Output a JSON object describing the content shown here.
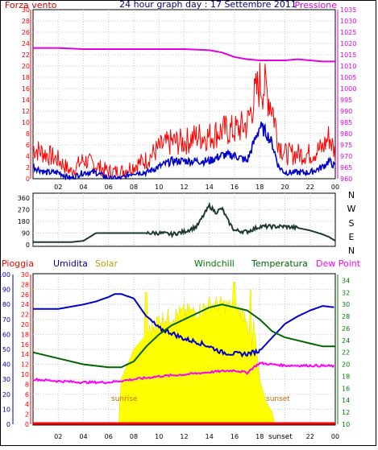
{
  "colors": {
    "wind": "#ff0000",
    "gust_line": "#0000cc",
    "pressure": "#e000e0",
    "wind_dir": "#1f3b2f",
    "humidity": "#0000cc",
    "solar": "#ffff00",
    "windchill": "#007a00",
    "temperature": "#006400",
    "dew_point": "#ff00ff",
    "rain": "#ff0000",
    "label_sun": "#cc6600",
    "axis_green": "#008000",
    "axis_blue": "#0000aa",
    "axis_red": "#ff0000",
    "solar_label": "#b8a000",
    "title_blue": "#000080"
  },
  "header": {
    "wind_label": "Forza vento",
    "title": "24 hour graph day : 17 Settembre 2011",
    "pressure_label": "Pressione"
  },
  "direction_labels": [
    "N",
    "W",
    "S",
    "E",
    "N"
  ],
  "bottom_labels": {
    "rain": "Pioggia",
    "humidity": "Umidita",
    "solar": "Solar",
    "windchill": "Windchill",
    "temperature": "Temperatura",
    "dew_point": "Dew Point",
    "sunrise": "sunrise",
    "sunset": "sunset",
    "sunset_axis": "sunset"
  },
  "x_ticks_top": [
    "02",
    "04",
    "06",
    "08",
    "10",
    "12",
    "14",
    "16",
    "18",
    "20",
    "22",
    "00"
  ],
  "x_ticks_bottom": [
    "02",
    "04",
    "06",
    "08",
    "10",
    "12",
    "14",
    "16",
    "18",
    "",
    "22",
    "00"
  ],
  "chart_data": [
    {
      "type": "line",
      "panel": "wind",
      "x_range": [
        0,
        24
      ],
      "y_left_range": [
        0,
        30
      ],
      "y_left_ticks": [
        0,
        2,
        4,
        6,
        8,
        10,
        12,
        14,
        16,
        18,
        20,
        22,
        24,
        26,
        28,
        30
      ],
      "y_right_range": [
        960,
        1035
      ],
      "y_right_ticks": [
        960,
        965,
        970,
        975,
        980,
        985,
        990,
        995,
        1000,
        1005,
        1010,
        1015,
        1020,
        1025,
        1030,
        1035
      ],
      "series": [
        {
          "name": "Forza vento",
          "axis": "left",
          "x": [
            0,
            1,
            2,
            3,
            4,
            5,
            6,
            7,
            8,
            9,
            10,
            11,
            12,
            13,
            14,
            15,
            16,
            17,
            17.5,
            18,
            18.5,
            19,
            19.5,
            20,
            21,
            22,
            23,
            23.5,
            24
          ],
          "values": [
            5,
            4,
            3,
            1,
            3,
            2,
            1,
            1,
            2,
            3,
            5,
            6,
            6,
            7,
            7,
            8,
            8,
            9,
            13,
            16,
            15,
            12,
            6,
            4,
            4,
            4,
            5,
            7,
            4
          ]
        },
        {
          "name": "",
          "axis": "left",
          "x": [
            0,
            1,
            2,
            3,
            4,
            5,
            6,
            7,
            8,
            9,
            10,
            11,
            12,
            13,
            14,
            15,
            16,
            17,
            17.5,
            18,
            18.5,
            19,
            19.5,
            20,
            21,
            22,
            23,
            23.5,
            24
          ],
          "values": [
            2,
            1,
            1,
            0,
            1,
            1,
            0,
            0,
            1,
            1,
            2,
            3,
            3,
            3,
            3,
            4,
            4,
            3,
            6,
            9,
            8,
            6,
            2,
            1,
            1,
            1,
            2,
            3,
            2
          ]
        },
        {
          "name": "Pressione",
          "axis": "right",
          "x": [
            0,
            2,
            4,
            6,
            8,
            10,
            12,
            14,
            15,
            16,
            17,
            18,
            19,
            20,
            21,
            22,
            23,
            24
          ],
          "values": [
            1018,
            1018,
            1017.5,
            1017.5,
            1017.5,
            1017.5,
            1017.5,
            1017,
            1016,
            1014,
            1013,
            1012.5,
            1012.5,
            1012.5,
            1013,
            1012.5,
            1012,
            1012
          ]
        }
      ]
    },
    {
      "type": "line",
      "panel": "wind_direction",
      "x_range": [
        0,
        24
      ],
      "y_range": [
        0,
        360
      ],
      "y_ticks": [
        0,
        90,
        180,
        270,
        360
      ],
      "series": [
        {
          "name": "",
          "x": [
            0,
            2,
            3,
            4,
            5,
            6,
            7,
            8,
            9,
            10,
            11,
            12,
            13,
            13.5,
            14,
            14.5,
            15,
            15.5,
            16,
            17,
            18,
            19,
            20,
            21,
            22,
            23,
            23.5,
            24
          ],
          "values": [
            20,
            20,
            20,
            30,
            90,
            90,
            90,
            90,
            90,
            90,
            80,
            100,
            140,
            220,
            300,
            250,
            280,
            180,
            110,
            100,
            140,
            140,
            140,
            130,
            110,
            80,
            60,
            30
          ]
        }
      ]
    },
    {
      "type": "area",
      "panel": "rain_humidity_solar_temperature",
      "x_range": [
        0,
        24
      ],
      "y_humidity_range": [
        0,
        100
      ],
      "y_humidity_ticks": [
        0,
        10,
        20,
        30,
        40,
        50,
        60,
        70,
        80,
        90,
        100
      ],
      "y_rain_range": [
        0,
        30
      ],
      "y_rain_ticks": [
        0,
        2,
        4,
        6,
        8,
        10,
        12,
        14,
        16,
        18,
        20,
        22,
        24,
        26,
        28,
        30
      ],
      "y_temp_range": [
        10,
        35
      ],
      "y_temp_ticks": [
        10,
        12,
        14,
        16,
        18,
        20,
        22,
        24,
        26,
        28,
        30,
        32,
        34
      ],
      "series": [
        {
          "name": "Umidita",
          "axis": "humidity",
          "x": [
            0,
            2,
            4,
            5,
            6,
            6.5,
            7,
            8,
            9,
            10,
            11,
            12,
            13,
            14,
            15,
            16,
            17,
            18,
            19,
            20,
            21,
            22,
            23,
            24
          ],
          "values": [
            77,
            77,
            80,
            82,
            85,
            87,
            87,
            84,
            72,
            64,
            61,
            57,
            55,
            52,
            48,
            47,
            47,
            49,
            58,
            67,
            72,
            76,
            79,
            78
          ]
        },
        {
          "name": "Solar",
          "axis": "humidity",
          "x": [
            6.8,
            7,
            8,
            9,
            10,
            11,
            12,
            13,
            14,
            15,
            16,
            17,
            17.3,
            17.5,
            18,
            18.5,
            19,
            19.2
          ],
          "values": [
            0,
            30,
            50,
            60,
            70,
            72,
            75,
            75,
            80,
            80,
            78,
            72,
            40,
            70,
            30,
            15,
            8,
            0
          ]
        },
        {
          "name": "Windchill",
          "axis": "temp",
          "x": [
            0,
            2,
            4,
            6,
            7,
            8,
            9,
            10,
            11,
            12,
            13,
            14,
            15,
            16,
            17,
            18,
            19,
            20,
            21,
            22,
            23,
            24
          ],
          "values": [
            22,
            21,
            20,
            19.5,
            19.5,
            20.5,
            23,
            25,
            26.5,
            27.5,
            28.5,
            29.5,
            30,
            29.5,
            29,
            27.5,
            25.5,
            24.5,
            24,
            23.5,
            23,
            23
          ]
        },
        {
          "name": "Temperatura",
          "axis": "temp",
          "x": [
            0,
            2,
            4,
            6,
            7,
            8,
            9,
            10,
            11,
            12,
            13,
            14,
            15,
            16,
            17,
            18,
            19,
            20,
            21,
            22,
            23,
            24
          ],
          "values": [
            22,
            21,
            20,
            19.5,
            19.5,
            20.5,
            23,
            25,
            26.5,
            27.5,
            28.5,
            29.5,
            30,
            29.5,
            29,
            27.5,
            25.5,
            24.5,
            24,
            23.5,
            23,
            23
          ]
        },
        {
          "name": "Dew Point",
          "axis": "temp",
          "x": [
            0,
            2,
            4,
            6,
            8,
            10,
            12,
            14,
            16,
            17,
            17.5,
            18,
            19,
            20,
            22,
            24
          ],
          "values": [
            17.5,
            17.2,
            17.0,
            17.0,
            17.5,
            18.0,
            18.3,
            18.7,
            19.0,
            18.6,
            19.5,
            20.2,
            20.0,
            19.8,
            19.8,
            19.7
          ]
        },
        {
          "name": "Pioggia",
          "axis": "rain",
          "x": [
            0,
            24
          ],
          "values": [
            0,
            0
          ]
        }
      ]
    }
  ]
}
